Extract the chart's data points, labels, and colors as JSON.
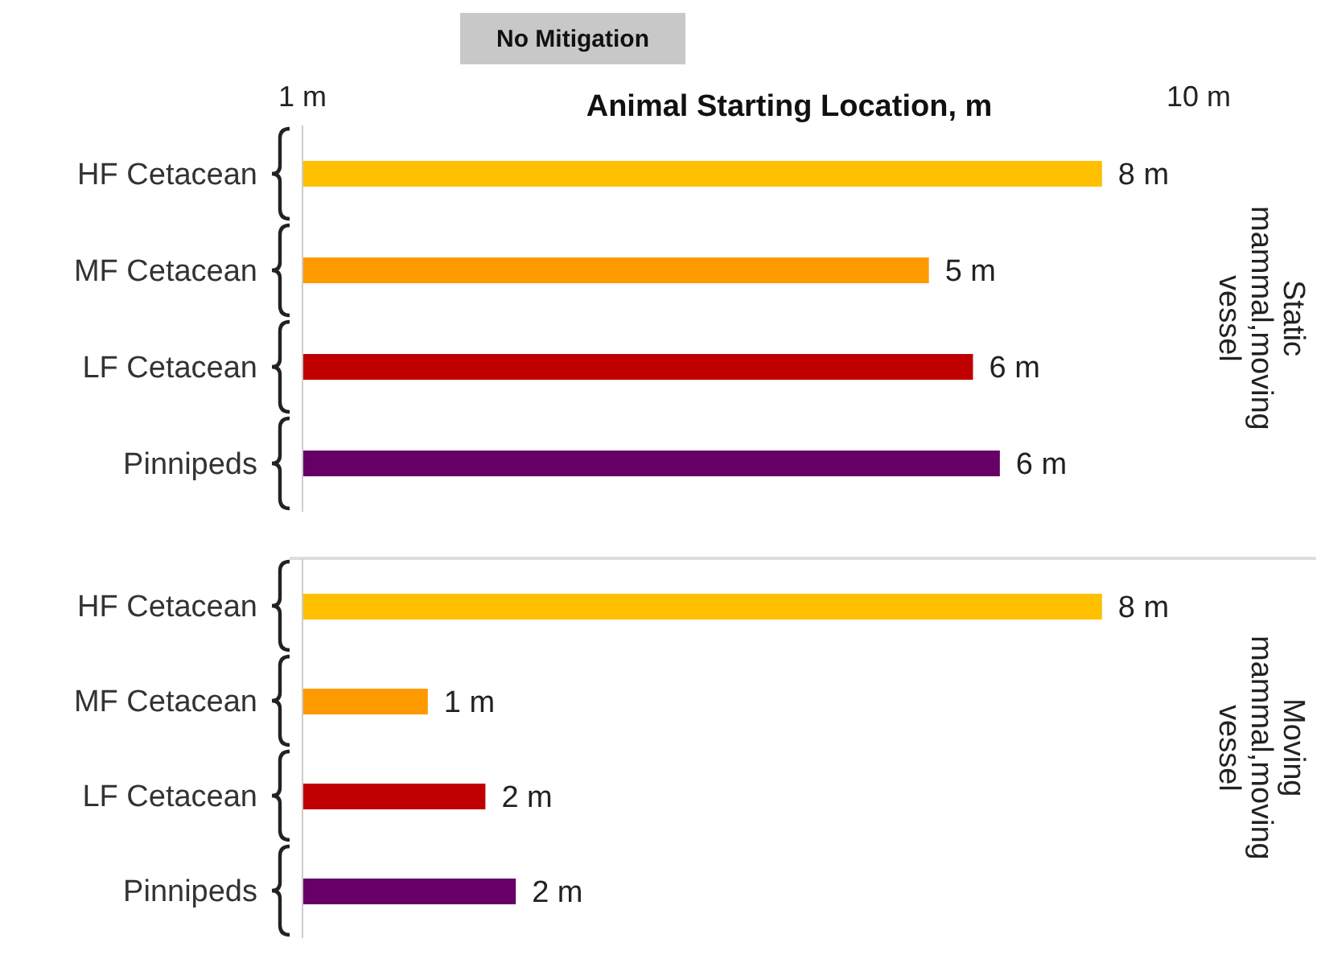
{
  "chart_data": [
    {
      "type": "bar",
      "orientation": "horizontal",
      "title": "No Mitigation",
      "xlabel": "Animal Starting Location, m",
      "log": "x",
      "categories": [
        "HF Cetacean",
        "MF Cetacean",
        "LF Cetacean",
        "Pinnipeds"
      ],
      "values": [
        7.8,
        5.0,
        5.6,
        6.0
      ],
      "colors": [
        "#ffc000",
        "#ff9900",
        "#c00000",
        "#660066"
      ],
      "value_labels": [
        "8 m",
        "5 m",
        "6 m",
        "6 m"
      ],
      "xlim": [
        1,
        10
      ],
      "xticks": [
        {
          "value": 1,
          "label": "1 m"
        },
        {
          "value": 10,
          "label": "10 m"
        }
      ],
      "annotations": [
        "Static mammal,moving vessel"
      ]
    },
    {
      "type": "bar",
      "orientation": "horizontal",
      "log": "x",
      "tick_labels": "y",
      "categories": [
        "HF Cetacean",
        "MF Cetacean",
        "LF Cetacean",
        "Pinnipeds"
      ],
      "values": [
        7.8,
        1.38,
        1.6,
        1.73
      ],
      "colors": [
        "#ffc000",
        "#ff9900",
        "#c00000",
        "#660066"
      ],
      "value_labels": [
        "8 m",
        "1 m",
        "2 m",
        "2 m"
      ],
      "xlim": [
        1,
        10
      ],
      "annotations": [
        "Moving mammal,moving vessel"
      ]
    }
  ]
}
